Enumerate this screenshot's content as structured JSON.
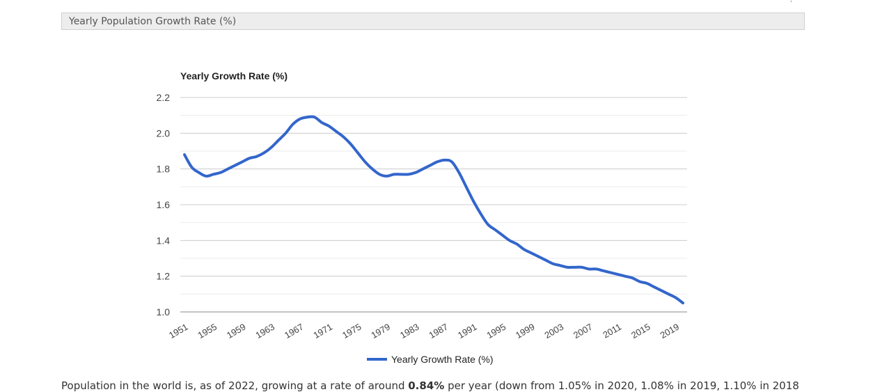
{
  "header": {
    "title": "Yearly Population Growth Rate (%)"
  },
  "footer": {
    "text_prefix": "Population in the world is, as of 2022, growing at a rate of around ",
    "text_bold": "0.84%",
    "text_suffix": " per year (down from 1.05% in 2020, 1.08% in 2019, 1.10% in 2018"
  },
  "colors": {
    "series": "#3366cc",
    "grid": "#cccccc",
    "axis_text": "#444444"
  },
  "chart_data": {
    "type": "line",
    "title": "Yearly Growth Rate (%)",
    "xlabel": "",
    "ylabel": "",
    "ylim": [
      1.0,
      2.2
    ],
    "y_ticks": [
      "1.0",
      "1.2",
      "1.4",
      "1.6",
      "1.8",
      "2.0",
      "2.2"
    ],
    "x_ticks": [
      "1951",
      "1955",
      "1959",
      "1963",
      "1967",
      "1971",
      "1975",
      "1979",
      "1983",
      "1987",
      "1991",
      "1995",
      "1999",
      "2003",
      "2007",
      "2011",
      "2015",
      "2019"
    ],
    "legend_position": "bottom",
    "grid": true,
    "series": [
      {
        "name": "Yearly Growth Rate (%)",
        "x": [
          1951,
          1952,
          1953,
          1954,
          1955,
          1956,
          1957,
          1958,
          1959,
          1960,
          1961,
          1962,
          1963,
          1964,
          1965,
          1966,
          1967,
          1968,
          1969,
          1970,
          1971,
          1972,
          1973,
          1974,
          1975,
          1976,
          1977,
          1978,
          1979,
          1980,
          1981,
          1982,
          1983,
          1984,
          1985,
          1986,
          1987,
          1988,
          1989,
          1990,
          1991,
          1992,
          1993,
          1994,
          1995,
          1996,
          1997,
          1998,
          1999,
          2000,
          2001,
          2002,
          2003,
          2004,
          2005,
          2006,
          2007,
          2008,
          2009,
          2010,
          2011,
          2012,
          2013,
          2014,
          2015,
          2016,
          2017,
          2018,
          2019,
          2020
        ],
        "values": [
          1.88,
          1.81,
          1.78,
          1.76,
          1.77,
          1.78,
          1.8,
          1.82,
          1.84,
          1.86,
          1.87,
          1.89,
          1.92,
          1.96,
          2.0,
          2.05,
          2.08,
          2.09,
          2.09,
          2.06,
          2.04,
          2.01,
          1.98,
          1.94,
          1.89,
          1.84,
          1.8,
          1.77,
          1.76,
          1.77,
          1.77,
          1.77,
          1.78,
          1.8,
          1.82,
          1.84,
          1.85,
          1.84,
          1.78,
          1.7,
          1.62,
          1.55,
          1.49,
          1.46,
          1.43,
          1.4,
          1.38,
          1.35,
          1.33,
          1.31,
          1.29,
          1.27,
          1.26,
          1.25,
          1.25,
          1.25,
          1.24,
          1.24,
          1.23,
          1.22,
          1.21,
          1.2,
          1.19,
          1.17,
          1.16,
          1.14,
          1.12,
          1.1,
          1.08,
          1.05
        ]
      }
    ]
  }
}
